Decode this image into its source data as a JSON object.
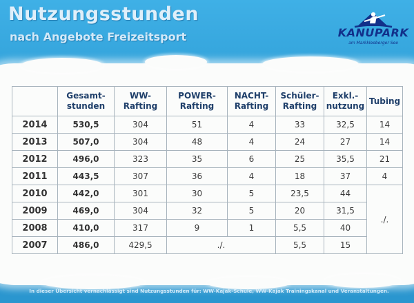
{
  "title": "Nutzungsstunden",
  "subtitle": "nach Angebote Freizeitsport",
  "logo": {
    "name": "KANUPARK",
    "tagline": "am Markkleeberger See",
    "color": "#12308a"
  },
  "colors": {
    "background": "#2f9fd6",
    "panel": "#fbfcfb",
    "header_text": "#1f3f6a",
    "grid": "#a8b4bd"
  },
  "table": {
    "headers": [
      {
        "line1": "",
        "line2": ""
      },
      {
        "line1": "Gesamt-",
        "line2": "stunden"
      },
      {
        "line1": "WW-",
        "line2": "Rafting"
      },
      {
        "line1": "POWER-",
        "line2": "Rafting"
      },
      {
        "line1": "NACHT-",
        "line2": "Rafting"
      },
      {
        "line1": "Schüler-",
        "line2": "Rafting"
      },
      {
        "line1": "Exkl.-",
        "line2": "nutzung"
      },
      {
        "line1": "Tubing",
        "line2": ""
      }
    ],
    "rows": [
      {
        "year": "2014",
        "total": "530,5",
        "ww": "304",
        "power": "51",
        "nacht": "4",
        "schueler": "33",
        "exkl": "32,5",
        "tubing": "14"
      },
      {
        "year": "2013",
        "total": "507,0",
        "ww": "304",
        "power": "48",
        "nacht": "4",
        "schueler": "24",
        "exkl": "27",
        "tubing": "14"
      },
      {
        "year": "2012",
        "total": "496,0",
        "ww": "323",
        "power": "35",
        "nacht": "6",
        "schueler": "25",
        "exkl": "35,5",
        "tubing": "21"
      },
      {
        "year": "2011",
        "total": "443,5",
        "ww": "307",
        "power": "36",
        "nacht": "4",
        "schueler": "18",
        "exkl": "37",
        "tubing": "4"
      },
      {
        "year": "2010",
        "total": "442,0",
        "ww": "301",
        "power": "30",
        "nacht": "5",
        "schueler": "23,5",
        "exkl": "44"
      },
      {
        "year": "2009",
        "total": "469,0",
        "ww": "304",
        "power": "32",
        "nacht": "5",
        "schueler": "20",
        "exkl": "31,5"
      },
      {
        "year": "2008",
        "total": "410,0",
        "ww": "317",
        "power": "9",
        "nacht": "1",
        "schueler": "5,5",
        "exkl": "40"
      },
      {
        "year": "2007",
        "total": "486,0",
        "ww": "429,5",
        "schueler": "5,5",
        "exkl": "15"
      }
    ],
    "tubing_na": "./.",
    "power_nacht_2007": "./."
  },
  "footnote": "In dieser Übersicht vernachlässigt sind Nutzungsstunden für:  WW-Kajak-Schule, WW-Kajak Trainingskanal und Veranstaltungen."
}
